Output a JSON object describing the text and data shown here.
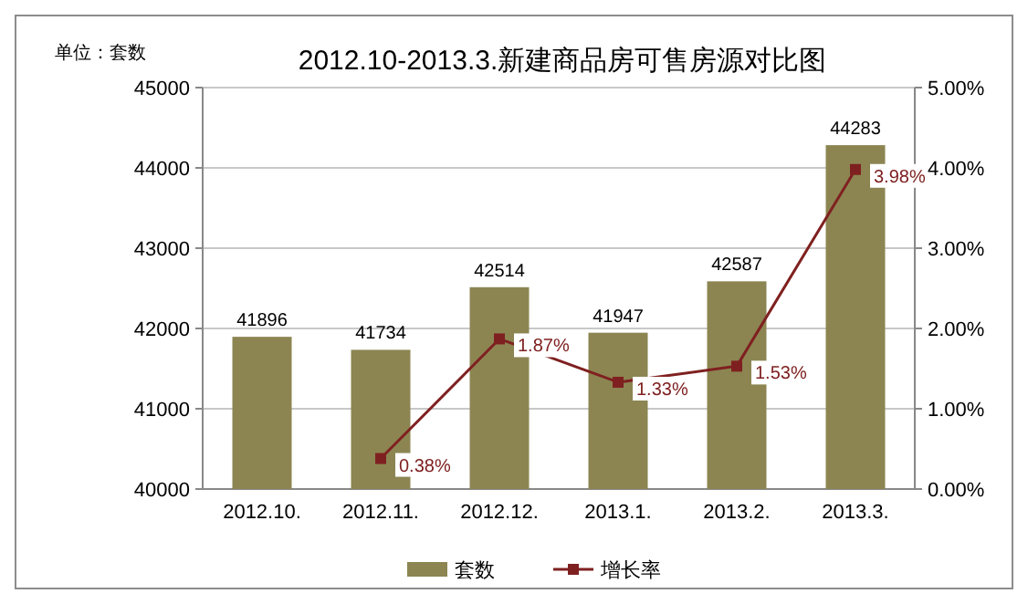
{
  "chart_data": {
    "type": "bar",
    "title": "2012.10-2013.3.新建商品房可售房源对比图",
    "annotations": [
      "单位：套数"
    ],
    "categories": [
      "2012.10.",
      "2012.11.",
      "2012.12.",
      "2013.1.",
      "2013.2.",
      "2013.3."
    ],
    "series": [
      {
        "name": "套数",
        "color": "#8c8552",
        "values": [
          41896,
          41734,
          42514,
          41947,
          42587,
          44283
        ],
        "value_labels": [
          "41896",
          "41734",
          "42514",
          "41947",
          "42587",
          "44283"
        ]
      },
      {
        "name": "增长率",
        "type": "line",
        "axis": "y2",
        "color": "#7f2020",
        "marker": "square",
        "values": [
          null,
          0.38,
          1.87,
          1.33,
          1.53,
          3.98
        ],
        "value_labels": [
          null,
          "0.38%",
          "1.87%",
          "1.33%",
          "1.53%",
          "3.98%"
        ]
      }
    ],
    "ylim": [
      40000,
      45000
    ],
    "yticks": [
      40000,
      41000,
      42000,
      43000,
      44000,
      45000
    ],
    "y2lim": [
      0,
      5
    ],
    "y2ticks": [
      {
        "value": 0,
        "label": "0.00%"
      },
      {
        "value": 1,
        "label": "1.00%"
      },
      {
        "value": 2,
        "label": "2.00%"
      },
      {
        "value": 3,
        "label": "3.00%"
      },
      {
        "value": 4,
        "label": "4.00%"
      },
      {
        "value": 5,
        "label": "5.00%"
      }
    ],
    "grid": "y",
    "legend": "bottom"
  }
}
